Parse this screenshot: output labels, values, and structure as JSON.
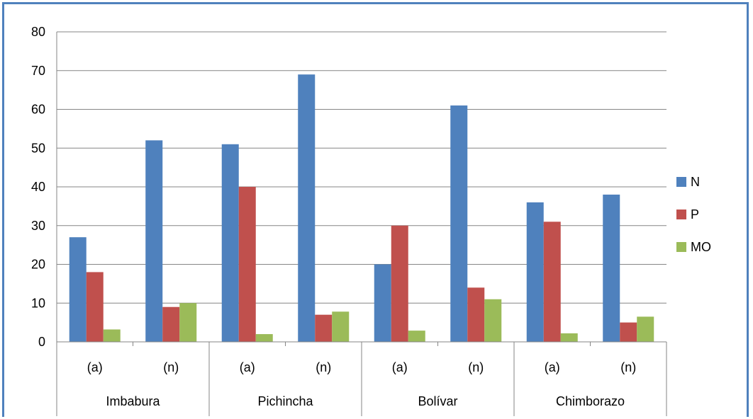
{
  "chart_data": {
    "type": "bar",
    "groups": [
      {
        "name": "Imbabura",
        "subcategories": [
          "(a)",
          "(n)"
        ]
      },
      {
        "name": "Pichincha",
        "subcategories": [
          "(a)",
          "(n)"
        ]
      },
      {
        "name": "Bolívar",
        "subcategories": [
          "(a)",
          "(n)"
        ]
      },
      {
        "name": "Chimborazo",
        "subcategories": [
          "(a)",
          "(n)"
        ]
      }
    ],
    "categories": [
      "Imbabura (a)",
      "Imbabura (n)",
      "Pichincha (a)",
      "Pichincha (n)",
      "Bolívar (a)",
      "Bolívar (n)",
      "Chimborazo (a)",
      "Chimborazo (n)"
    ],
    "series": [
      {
        "name": "N",
        "color": "#4f81bd",
        "values": [
          27,
          52,
          51,
          69,
          20,
          61,
          36,
          38
        ]
      },
      {
        "name": "P",
        "color": "#c0504d",
        "values": [
          18,
          9,
          40,
          7,
          30,
          14,
          31,
          5
        ]
      },
      {
        "name": "MO",
        "color": "#9bbb59",
        "values": [
          3.2,
          10,
          2,
          7.8,
          2.9,
          11,
          2.2,
          6.5
        ]
      }
    ],
    "ylim": [
      0,
      80
    ],
    "yticks": [
      0,
      10,
      20,
      30,
      40,
      50,
      60,
      70,
      80
    ],
    "grid": true,
    "legend_position": "right",
    "title": "",
    "xlabel": "",
    "ylabel": ""
  }
}
